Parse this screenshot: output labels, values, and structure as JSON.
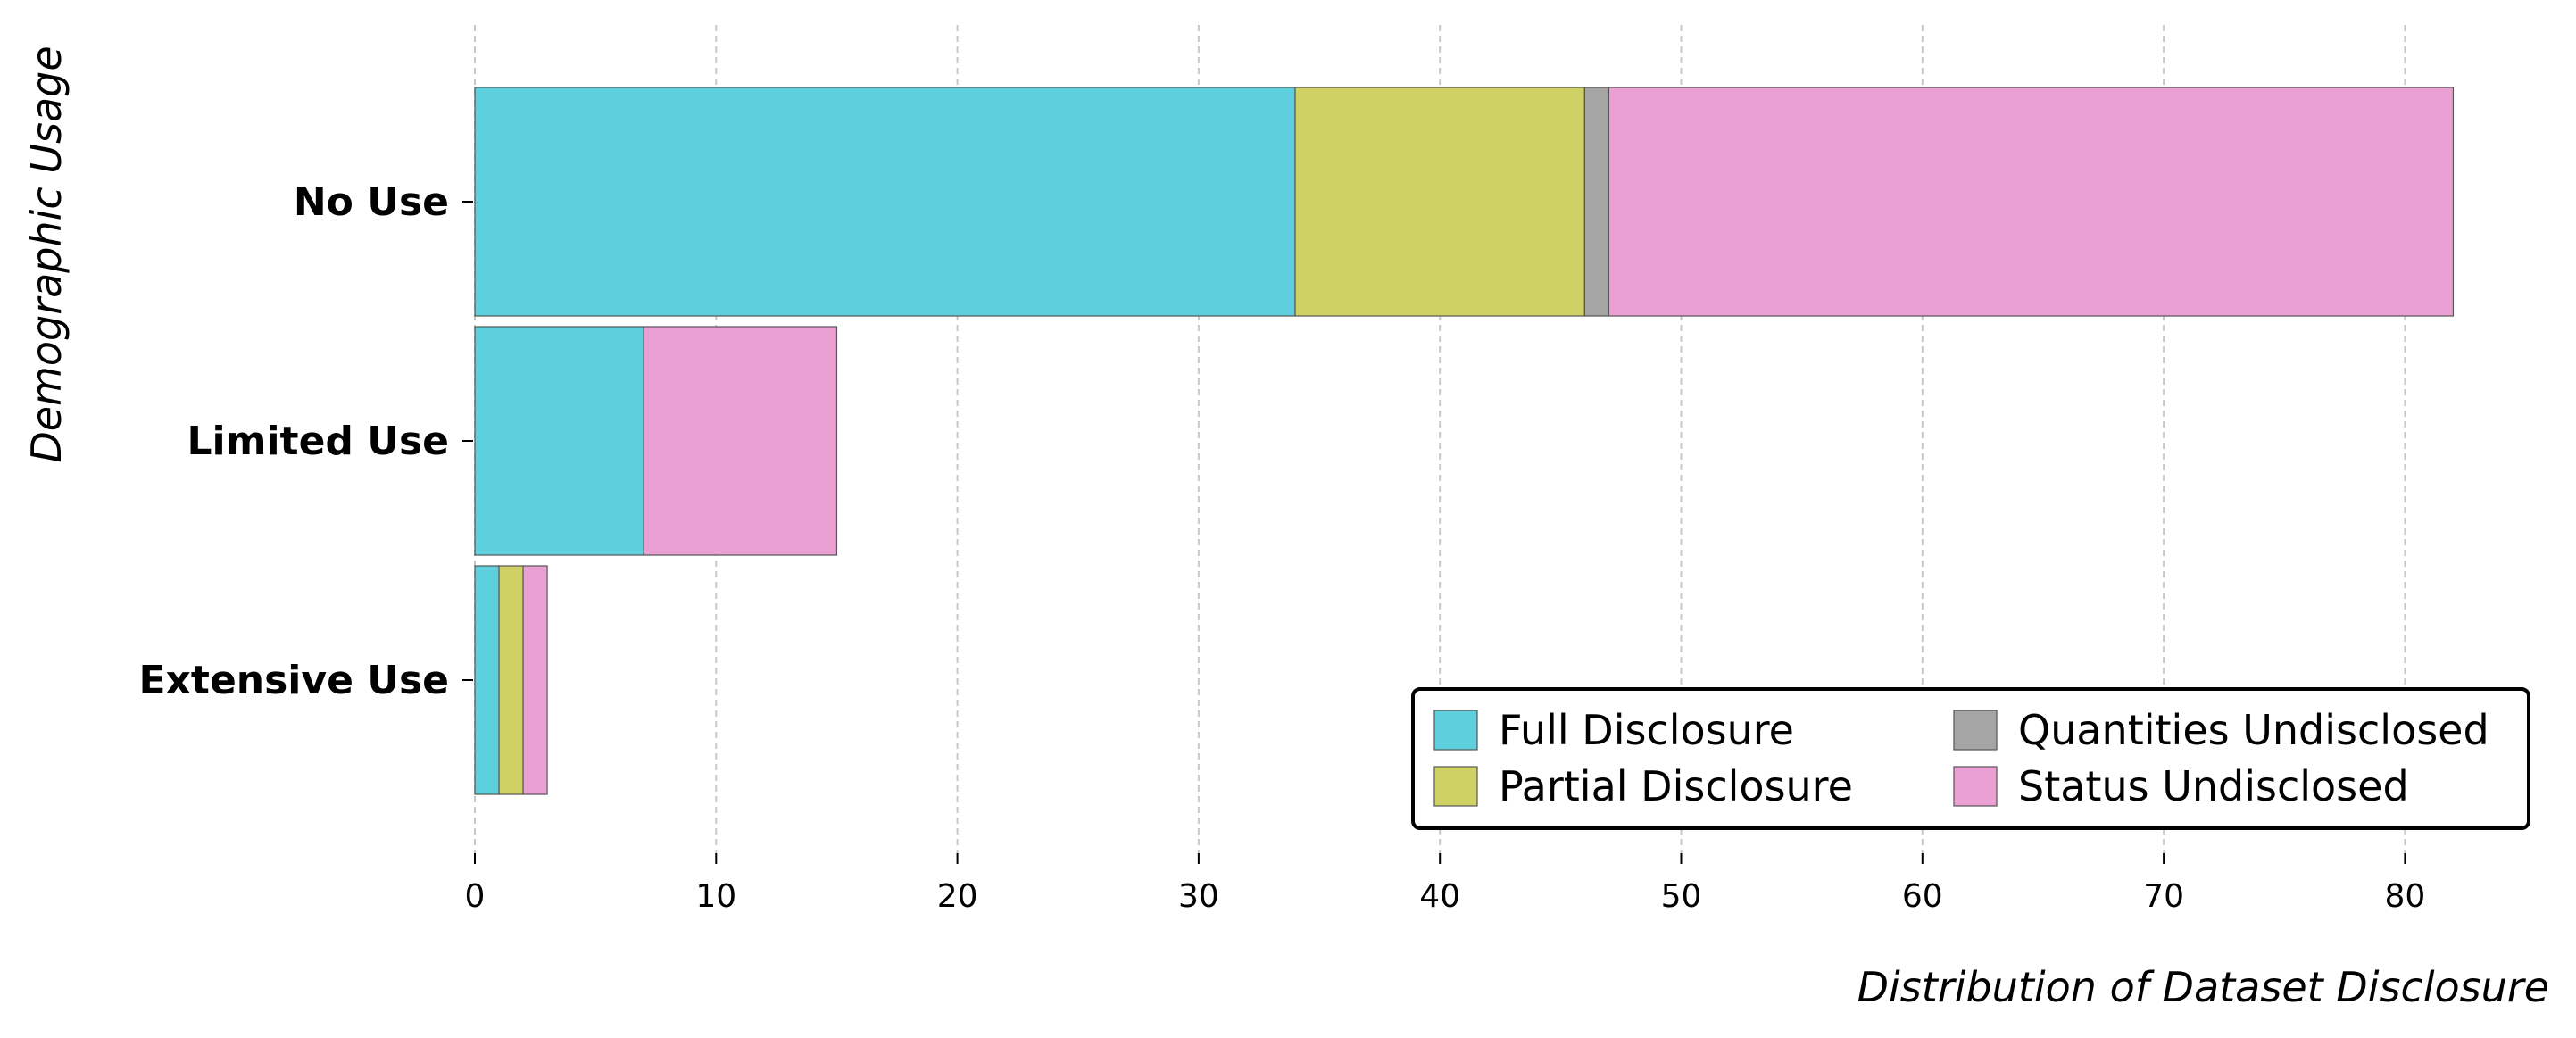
{
  "chart_data": {
    "type": "bar",
    "orientation": "horizontal",
    "stacked": true,
    "categories": [
      "No Use",
      "Limited Use",
      "Extensive Use"
    ],
    "series": [
      {
        "name": "Full Disclosure",
        "values": [
          34,
          7,
          1
        ],
        "color": "#5ecfdd"
      },
      {
        "name": "Partial Disclosure",
        "values": [
          12,
          0,
          1
        ],
        "color": "#cfd165"
      },
      {
        "name": "Quantities Undisclosed",
        "values": [
          1,
          0,
          0
        ],
        "color": "#a5a5a5"
      },
      {
        "name": "Status Undisclosed",
        "values": [
          35,
          8,
          1
        ],
        "color": "#eaa0d3"
      }
    ],
    "xlabel": "Distribution of Dataset Disclosure",
    "ylabel": "Demographic Usage",
    "xlim": [
      0,
      85
    ],
    "xticks": [
      0,
      10,
      20,
      30,
      40,
      50,
      60,
      70,
      80
    ],
    "grid": "vertical-dashed",
    "legend_position": "bottom-right",
    "legend_columns": 2
  }
}
